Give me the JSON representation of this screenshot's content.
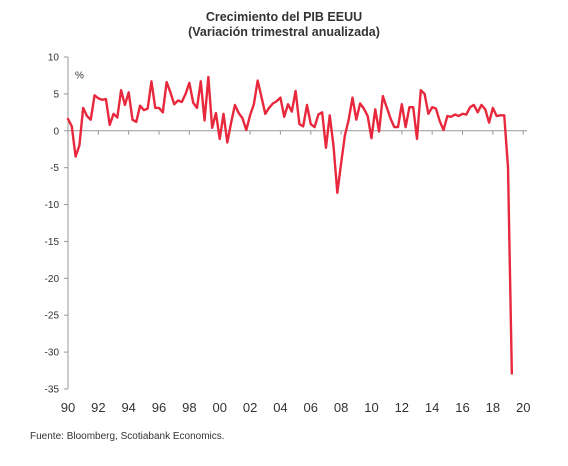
{
  "chart_data": {
    "type": "line",
    "title": "Crecimiento del PIB EEUU",
    "subtitle": "(Variación trimestral anualizada)",
    "unit_label": "%",
    "xlabel": "",
    "ylabel": "",
    "ylim": [
      -35,
      10
    ],
    "y_ticks": [
      10,
      5,
      0,
      -5,
      -10,
      -15,
      -20,
      -25,
      -30,
      -35
    ],
    "xlim": [
      1990,
      2020.25
    ],
    "x_ticks": [
      {
        "value": 1990,
        "label": "90"
      },
      {
        "value": 1992,
        "label": "92"
      },
      {
        "value": 1994,
        "label": "94"
      },
      {
        "value": 1996,
        "label": "96"
      },
      {
        "value": 1998,
        "label": "98"
      },
      {
        "value": 2000,
        "label": "00"
      },
      {
        "value": 2002,
        "label": "02"
      },
      {
        "value": 2004,
        "label": "04"
      },
      {
        "value": 2006,
        "label": "06"
      },
      {
        "value": 2008,
        "label": "08"
      },
      {
        "value": 2010,
        "label": "10"
      },
      {
        "value": 2012,
        "label": "12"
      },
      {
        "value": 2014,
        "label": "14"
      },
      {
        "value": 2016,
        "label": "16"
      },
      {
        "value": 2018,
        "label": "18"
      },
      {
        "value": 2020,
        "label": "20"
      }
    ],
    "grid": false,
    "series": [
      {
        "name": "",
        "color": "#e8283c",
        "x_start": 1990.0,
        "x_step": 0.25,
        "values": [
          1.6,
          0.6,
          -3.5,
          -2.0,
          3.1,
          2.0,
          1.5,
          4.8,
          4.4,
          4.2,
          4.3,
          0.8,
          2.3,
          1.8,
          5.5,
          3.5,
          5.2,
          1.5,
          1.2,
          3.4,
          2.8,
          3.0,
          6.7,
          3.1,
          3.1,
          2.5,
          6.6,
          5.2,
          3.6,
          4.1,
          3.9,
          5.0,
          6.5,
          3.8,
          3.1,
          6.7,
          1.4,
          7.3,
          0.4,
          2.4,
          -1.1,
          2.3,
          -1.6,
          1.1,
          3.5,
          2.4,
          1.7,
          0.1,
          2.1,
          3.6,
          6.8,
          4.6,
          2.3,
          3.1,
          3.7,
          4.0,
          4.5,
          1.9,
          3.6,
          2.6,
          5.4,
          0.9,
          0.6,
          3.5,
          0.9,
          0.5,
          2.2,
          2.5,
          -2.3,
          2.1,
          -2.1,
          -8.4,
          -4.4,
          -0.6,
          1.5,
          4.5,
          1.5,
          3.7,
          3.0,
          2.0,
          -1.0,
          2.9,
          -0.1,
          4.7,
          3.2,
          1.7,
          0.5,
          0.5,
          3.6,
          0.5,
          3.2,
          3.2,
          -1.1,
          5.5,
          5.0,
          2.3,
          3.2,
          3.0,
          1.3,
          0.1,
          2.0,
          1.9,
          2.2,
          2.0,
          2.3,
          2.2,
          3.2,
          3.5,
          2.5,
          3.5,
          2.9,
          1.1,
          3.1,
          2.0,
          2.1,
          2.1,
          -5.0,
          -32.9
        ]
      }
    ]
  },
  "source": "Fuente: Bloomberg, Scotiabank Economics."
}
